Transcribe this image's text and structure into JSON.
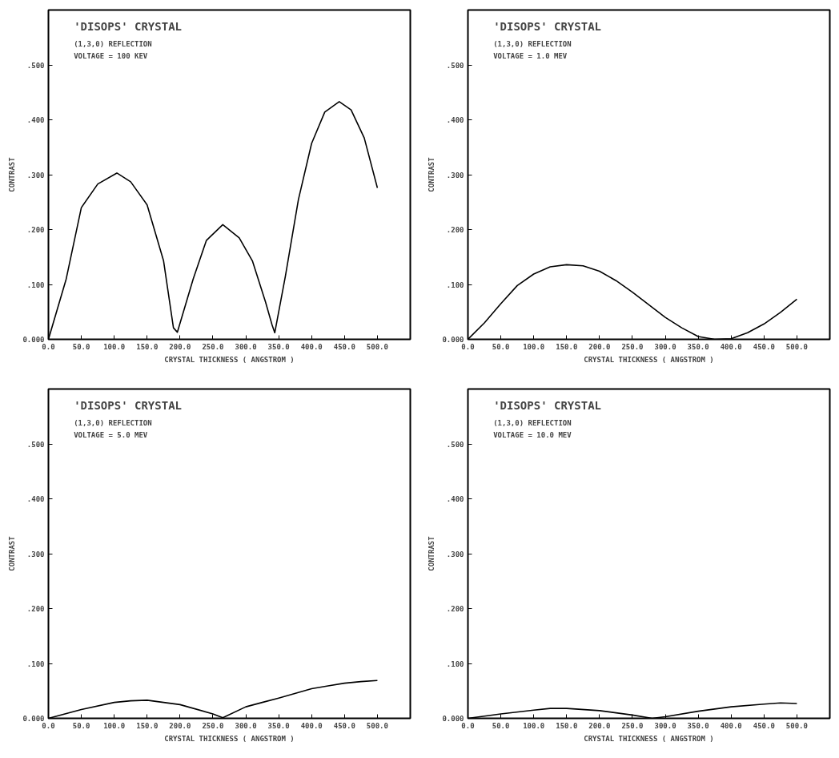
{
  "chart_data": [
    {
      "type": "line",
      "title": "'DISOPS' CRYSTAL",
      "subtitle": "(1,3,0) REFLECTION",
      "annotations": [
        "VOLTAGE = 100 KEV"
      ],
      "xlabel": "CRYSTAL THICKNESS ( ANGSTROM )",
      "ylabel": "CONTRAST",
      "grid": false,
      "marker": "none",
      "line_style": "solid",
      "xlim": [
        0,
        550
      ],
      "ylim": [
        0,
        0.6
      ],
      "xticks": [
        {
          "value": 0,
          "label": "0.0"
        },
        {
          "value": 50,
          "label": "50.0"
        },
        {
          "value": 100,
          "label": "100.0"
        },
        {
          "value": 150,
          "label": "150.0"
        },
        {
          "value": 200,
          "label": "200.0"
        },
        {
          "value": 250,
          "label": "250.0"
        },
        {
          "value": 300,
          "label": "300.0"
        },
        {
          "value": 350,
          "label": "350.0"
        },
        {
          "value": 400,
          "label": "400.0"
        },
        {
          "value": 450,
          "label": "450.0"
        },
        {
          "value": 500,
          "label": "500.0"
        }
      ],
      "yticks": [
        {
          "value": 0,
          "label": "0.000"
        },
        {
          "value": 0.1,
          "label": ".100"
        },
        {
          "value": 0.2,
          "label": ".200"
        },
        {
          "value": 0.3,
          "label": ".300"
        },
        {
          "value": 0.4,
          "label": ".400"
        },
        {
          "value": 0.5,
          "label": ".500"
        }
      ],
      "series": [
        {
          "color": "#000000",
          "x": [
            0,
            27,
            50,
            75,
            104,
            125,
            150,
            175,
            190,
            196,
            220,
            240,
            265,
            290,
            310,
            330,
            340,
            344,
            360,
            380,
            400,
            420,
            442,
            460,
            480,
            500
          ],
          "values": [
            0,
            0.11,
            0.24,
            0.283,
            0.303,
            0.287,
            0.245,
            0.143,
            0.021,
            0.013,
            0.11,
            0.18,
            0.209,
            0.185,
            0.143,
            0.068,
            0.026,
            0.012,
            0.114,
            0.255,
            0.357,
            0.414,
            0.433,
            0.418,
            0.367,
            0.276
          ]
        }
      ]
    },
    {
      "type": "line",
      "title": "'DISOPS' CRYSTAL",
      "subtitle": "(1,3,0) REFLECTION",
      "annotations": [
        "VOLTAGE = 1.0 MEV"
      ],
      "xlabel": "CRYSTAL THICKNESS ( ANGSTROM )",
      "ylabel": "CONTRAST",
      "grid": false,
      "marker": "none",
      "line_style": "solid",
      "xlim": [
        0,
        550
      ],
      "ylim": [
        0,
        0.6
      ],
      "xticks": [
        {
          "value": 0,
          "label": "0.0"
        },
        {
          "value": 50,
          "label": "50.0"
        },
        {
          "value": 100,
          "label": "100.0"
        },
        {
          "value": 150,
          "label": "150.0"
        },
        {
          "value": 200,
          "label": "200.0"
        },
        {
          "value": 250,
          "label": "250.0"
        },
        {
          "value": 300,
          "label": "300.0"
        },
        {
          "value": 350,
          "label": "350.0"
        },
        {
          "value": 400,
          "label": "400.0"
        },
        {
          "value": 450,
          "label": "450.0"
        },
        {
          "value": 500,
          "label": "500.0"
        }
      ],
      "yticks": [
        {
          "value": 0,
          "label": "0.000"
        },
        {
          "value": 0.1,
          "label": ".100"
        },
        {
          "value": 0.2,
          "label": ".200"
        },
        {
          "value": 0.3,
          "label": ".300"
        },
        {
          "value": 0.4,
          "label": ".400"
        },
        {
          "value": 0.5,
          "label": ".500"
        }
      ],
      "series": [
        {
          "color": "#000000",
          "x": [
            0,
            25,
            50,
            75,
            100,
            125,
            150,
            175,
            200,
            225,
            250,
            275,
            300,
            325,
            350,
            375,
            400,
            425,
            450,
            475,
            500
          ],
          "values": [
            0,
            0.03,
            0.065,
            0.098,
            0.119,
            0.132,
            0.136,
            0.134,
            0.124,
            0.107,
            0.086,
            0.063,
            0.04,
            0.021,
            0.005,
            0.0,
            0.001,
            0.012,
            0.028,
            0.049,
            0.073
          ]
        }
      ]
    },
    {
      "type": "line",
      "title": "'DISOPS' CRYSTAL",
      "subtitle": "(1,3,0) REFLECTION",
      "annotations": [
        "VOLTAGE = 5.0 MEV"
      ],
      "xlabel": "CRYSTAL THICKNESS ( ANGSTROM )",
      "ylabel": "CONTRAST",
      "grid": false,
      "marker": "none",
      "line_style": "solid",
      "xlim": [
        0,
        550
      ],
      "ylim": [
        0,
        0.6
      ],
      "xticks": [
        {
          "value": 0,
          "label": "0.0"
        },
        {
          "value": 50,
          "label": "50.0"
        },
        {
          "value": 100,
          "label": "100.0"
        },
        {
          "value": 150,
          "label": "150.0"
        },
        {
          "value": 200,
          "label": "200.0"
        },
        {
          "value": 250,
          "label": "250.0"
        },
        {
          "value": 300,
          "label": "300.0"
        },
        {
          "value": 350,
          "label": "350.0"
        },
        {
          "value": 400,
          "label": "400.0"
        },
        {
          "value": 450,
          "label": "450.0"
        },
        {
          "value": 500,
          "label": "500.0"
        }
      ],
      "yticks": [
        {
          "value": 0,
          "label": "0.000"
        },
        {
          "value": 0.1,
          "label": ".100"
        },
        {
          "value": 0.2,
          "label": ".200"
        },
        {
          "value": 0.3,
          "label": ".300"
        },
        {
          "value": 0.4,
          "label": ".400"
        },
        {
          "value": 0.5,
          "label": ".500"
        }
      ],
      "series": [
        {
          "color": "#000000",
          "x": [
            0,
            50,
            100,
            125,
            150,
            200,
            250,
            265,
            300,
            325,
            350,
            400,
            425,
            450,
            475,
            500
          ],
          "values": [
            0,
            0.016,
            0.029,
            0.032,
            0.033,
            0.025,
            0.008,
            0.001,
            0.021,
            0.029,
            0.037,
            0.054,
            0.059,
            0.064,
            0.067,
            0.069
          ]
        }
      ]
    },
    {
      "type": "line",
      "title": "'DISOPS' CRYSTAL",
      "subtitle": "(1,3,0) REFLECTION",
      "annotations": [
        "VOLTAGE = 10.0 MEV"
      ],
      "xlabel": "CRYSTAL THICKNESS ( ANGSTROM )",
      "ylabel": "CONTRAST",
      "grid": false,
      "marker": "none",
      "line_style": "solid",
      "xlim": [
        0,
        550
      ],
      "ylim": [
        0,
        0.6
      ],
      "xticks": [
        {
          "value": 0,
          "label": "0.0"
        },
        {
          "value": 50,
          "label": "50.0"
        },
        {
          "value": 100,
          "label": "100.0"
        },
        {
          "value": 150,
          "label": "150.0"
        },
        {
          "value": 200,
          "label": "200.0"
        },
        {
          "value": 250,
          "label": "250.0"
        },
        {
          "value": 300,
          "label": "300.0"
        },
        {
          "value": 350,
          "label": "350.0"
        },
        {
          "value": 400,
          "label": "400.0"
        },
        {
          "value": 450,
          "label": "450.0"
        },
        {
          "value": 500,
          "label": "500.0"
        }
      ],
      "yticks": [
        {
          "value": 0,
          "label": "0.000"
        },
        {
          "value": 0.1,
          "label": ".100"
        },
        {
          "value": 0.2,
          "label": ".200"
        },
        {
          "value": 0.3,
          "label": ".300"
        },
        {
          "value": 0.4,
          "label": ".400"
        },
        {
          "value": 0.5,
          "label": ".500"
        }
      ],
      "series": [
        {
          "color": "#000000",
          "x": [
            0,
            50,
            100,
            125,
            150,
            200,
            250,
            280,
            300,
            350,
            400,
            450,
            475,
            500
          ],
          "values": [
            0,
            0.008,
            0.015,
            0.018,
            0.018,
            0.014,
            0.006,
            0.0,
            0.003,
            0.013,
            0.021,
            0.026,
            0.028,
            0.027
          ]
        }
      ]
    }
  ]
}
